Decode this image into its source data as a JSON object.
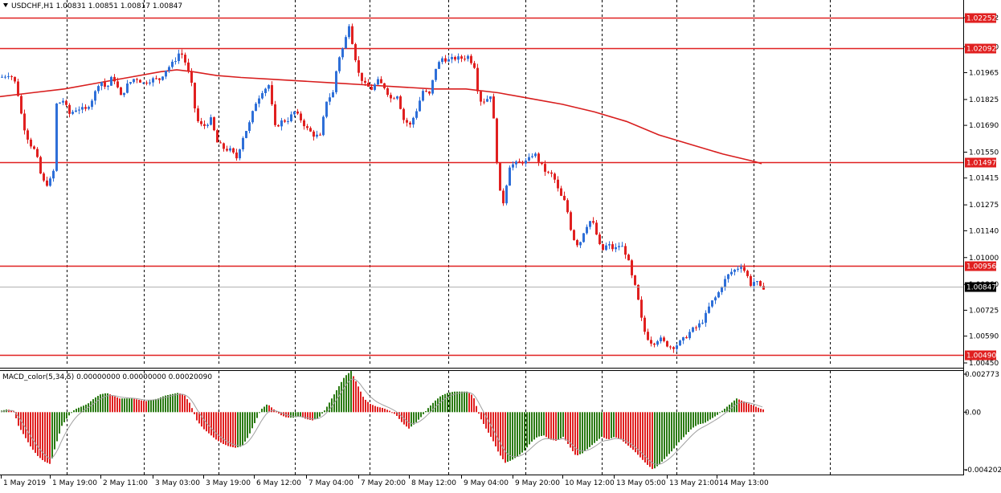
{
  "chart_data": {
    "type": "candlestick",
    "symbol_header": "USDCHF,H1  1.00831 1.00851 1.00817 1.00847",
    "ohlc_current": {
      "open": 1.00831,
      "high": 1.00851,
      "low": 1.00817,
      "close": 1.00847
    },
    "price_axis": {
      "range": [
        1.0045,
        1.02252
      ],
      "ticks": [
        "1.02252",
        "1.02100",
        "1.01965",
        "1.01825",
        "1.01690",
        "1.01550",
        "1.01415",
        "1.01275",
        "1.01140",
        "1.01000",
        "1.00860",
        "1.00725",
        "1.00590",
        "1.00450"
      ]
    },
    "time_labels": [
      "1 May 2019",
      "1 May 19:00",
      "2 May 11:00",
      "3 May 03:00",
      "3 May 19:00",
      "6 May 12:00",
      "7 May 04:00",
      "7 May 20:00",
      "8 May 12:00",
      "9 May 04:00",
      "9 May 20:00",
      "10 May 12:00",
      "13 May 05:00",
      "13 May 21:00",
      "14 May 13:00"
    ],
    "horizontal_levels": [
      {
        "label": "1.02252",
        "value": 1.02252
      },
      {
        "label": "1.02092",
        "value": 1.02092
      },
      {
        "label": "1.01497",
        "value": 1.01497
      },
      {
        "label": "1.00956",
        "value": 1.00956
      },
      {
        "label": "1.00490",
        "value": 1.0049
      }
    ],
    "current_price": {
      "label": "1.00847",
      "value": 1.00847
    },
    "bull_color": "#2e6fd8",
    "bear_color": "#e02020",
    "level_color": "#e02020",
    "ma_color": "#d81e1e",
    "moving_average": [
      [
        0,
        1.0184
      ],
      [
        40,
        1.0186
      ],
      [
        80,
        1.0188
      ],
      [
        120,
        1.0191
      ],
      [
        160,
        1.0194
      ],
      [
        200,
        1.0197
      ],
      [
        220,
        1.0198
      ],
      [
        240,
        1.0197
      ],
      [
        270,
        1.0195
      ],
      [
        300,
        1.0194
      ],
      [
        340,
        1.0193
      ],
      [
        380,
        1.0192
      ],
      [
        420,
        1.0191
      ],
      [
        460,
        1.019
      ],
      [
        500,
        1.0189
      ],
      [
        540,
        1.0188
      ],
      [
        580,
        1.0188
      ],
      [
        620,
        1.0186
      ],
      [
        660,
        1.0183
      ],
      [
        700,
        1.018
      ],
      [
        740,
        1.0176
      ],
      [
        780,
        1.0171
      ],
      [
        820,
        1.0164
      ],
      [
        860,
        1.0159
      ],
      [
        900,
        1.0154
      ],
      [
        940,
        1.015
      ],
      [
        948,
        1.0149
      ]
    ],
    "price_path": [
      [
        0,
        1.0194
      ],
      [
        12,
        1.0196
      ],
      [
        20,
        1.019
      ],
      [
        28,
        1.017
      ],
      [
        36,
        1.016
      ],
      [
        44,
        1.0155
      ],
      [
        52,
        1.014
      ],
      [
        60,
        1.0138
      ],
      [
        66,
        1.0145
      ],
      [
        70,
        1.018
      ],
      [
        78,
        1.0182
      ],
      [
        86,
        1.0175
      ],
      [
        96,
        1.0178
      ],
      [
        106,
        1.0177
      ],
      [
        116,
        1.0184
      ],
      [
        124,
        1.0193
      ],
      [
        132,
        1.0188
      ],
      [
        140,
        1.0195
      ],
      [
        150,
        1.0184
      ],
      [
        158,
        1.019
      ],
      [
        168,
        1.0194
      ],
      [
        178,
        1.0191
      ],
      [
        188,
        1.0193
      ],
      [
        198,
        1.0193
      ],
      [
        206,
        1.0198
      ],
      [
        216,
        1.0202
      ],
      [
        224,
        1.0208
      ],
      [
        232,
        1.02
      ],
      [
        238,
        1.019
      ],
      [
        244,
        1.0172
      ],
      [
        252,
        1.0168
      ],
      [
        262,
        1.0172
      ],
      [
        270,
        1.016
      ],
      [
        278,
        1.0157
      ],
      [
        286,
        1.0156
      ],
      [
        294,
        1.0152
      ],
      [
        302,
        1.0163
      ],
      [
        310,
        1.017
      ],
      [
        318,
        1.0181
      ],
      [
        326,
        1.0187
      ],
      [
        334,
        1.019
      ],
      [
        342,
        1.0168
      ],
      [
        350,
        1.0171
      ],
      [
        358,
        1.0172
      ],
      [
        366,
        1.0176
      ],
      [
        374,
        1.0172
      ],
      [
        382,
        1.0167
      ],
      [
        390,
        1.0164
      ],
      [
        398,
        1.0163
      ],
      [
        406,
        1.0182
      ],
      [
        414,
        1.0186
      ],
      [
        420,
        1.0203
      ],
      [
        428,
        1.0211
      ],
      [
        434,
        1.0222
      ],
      [
        440,
        1.0208
      ],
      [
        446,
        1.0196
      ],
      [
        454,
        1.019
      ],
      [
        462,
        1.0188
      ],
      [
        470,
        1.0192
      ],
      [
        478,
        1.0189
      ],
      [
        486,
        1.0183
      ],
      [
        494,
        1.0185
      ],
      [
        502,
        1.0172
      ],
      [
        510,
        1.0169
      ],
      [
        518,
        1.0177
      ],
      [
        526,
        1.0187
      ],
      [
        534,
        1.0185
      ],
      [
        542,
        1.0199
      ],
      [
        550,
        1.0204
      ],
      [
        558,
        1.0203
      ],
      [
        566,
        1.0204
      ],
      [
        574,
        1.0204
      ],
      [
        582,
        1.0205
      ],
      [
        590,
        1.02
      ],
      [
        596,
        1.0182
      ],
      [
        604,
        1.0182
      ],
      [
        610,
        1.0185
      ],
      [
        616,
        1.0165
      ],
      [
        620,
        1.0136
      ],
      [
        626,
        1.0129
      ],
      [
        634,
        1.0148
      ],
      [
        642,
        1.0149
      ],
      [
        650,
        1.015
      ],
      [
        656,
        1.015
      ],
      [
        664,
        1.0155
      ],
      [
        672,
        1.0149
      ],
      [
        680,
        1.0144
      ],
      [
        688,
        1.0143
      ],
      [
        696,
        1.0133
      ],
      [
        704,
        1.0128
      ],
      [
        712,
        1.0111
      ],
      [
        720,
        1.0106
      ],
      [
        728,
        1.0116
      ],
      [
        736,
        1.012
      ],
      [
        742,
        1.0112
      ],
      [
        748,
        1.0103
      ],
      [
        756,
        1.0107
      ],
      [
        764,
        1.0104
      ],
      [
        772,
        1.0107
      ],
      [
        780,
        1.0101
      ],
      [
        786,
        1.009
      ],
      [
        792,
        1.0082
      ],
      [
        800,
        1.0063
      ],
      [
        806,
        1.0058
      ],
      [
        812,
        1.0055
      ],
      [
        820,
        1.0058
      ],
      [
        828,
        1.0055
      ],
      [
        836,
        1.0053
      ],
      [
        844,
        1.0055
      ],
      [
        852,
        1.0058
      ],
      [
        860,
        1.0062
      ],
      [
        868,
        1.0064
      ],
      [
        876,
        1.0068
      ],
      [
        884,
        1.0076
      ],
      [
        892,
        1.008
      ],
      [
        900,
        1.0087
      ],
      [
        908,
        1.0092
      ],
      [
        916,
        1.0094
      ],
      [
        922,
        1.0096
      ],
      [
        928,
        1.0092
      ],
      [
        934,
        1.0086
      ],
      [
        940,
        1.0088
      ],
      [
        946,
        1.0084
      ],
      [
        952,
        1.00847
      ]
    ],
    "macd": {
      "label": "MACD_color(5,34,5) 0.00000000 0.00000000 0.00020090",
      "range": [
        -0.004202,
        0.002773
      ],
      "ticks": [
        "0.002773",
        "0.00",
        "-0.004202"
      ],
      "up_color": "#2a7a12",
      "down_color": "#e02020",
      "signal_color": "#a0a0a0",
      "bars": [
        [
          0,
          0.0001
        ],
        [
          8,
          0.0002
        ],
        [
          16,
          0.0001
        ],
        [
          22,
          -0.001
        ],
        [
          30,
          -0.0018
        ],
        [
          38,
          -0.0026
        ],
        [
          46,
          -0.0032
        ],
        [
          54,
          -0.0036
        ],
        [
          62,
          -0.0038
        ],
        [
          68,
          -0.0025
        ],
        [
          76,
          -0.001
        ],
        [
          84,
          -0.0003
        ],
        [
          92,
          0.0002
        ],
        [
          100,
          0.0004
        ],
        [
          108,
          0.0006
        ],
        [
          116,
          0.001
        ],
        [
          124,
          0.0013
        ],
        [
          132,
          0.0014
        ],
        [
          140,
          0.0012
        ],
        [
          148,
          0.001
        ],
        [
          156,
          0.001
        ],
        [
          164,
          0.001
        ],
        [
          172,
          0.0009
        ],
        [
          180,
          0.0008
        ],
        [
          188,
          0.0009
        ],
        [
          196,
          0.001
        ],
        [
          204,
          0.0012
        ],
        [
          212,
          0.0013
        ],
        [
          220,
          0.0014
        ],
        [
          228,
          0.0013
        ],
        [
          236,
          0.0006
        ],
        [
          244,
          -0.0006
        ],
        [
          252,
          -0.0012
        ],
        [
          260,
          -0.0016
        ],
        [
          268,
          -0.002
        ],
        [
          276,
          -0.0023
        ],
        [
          284,
          -0.0025
        ],
        [
          292,
          -0.0026
        ],
        [
          300,
          -0.0025
        ],
        [
          308,
          -0.0018
        ],
        [
          316,
          -0.0008
        ],
        [
          324,
          0.0002
        ],
        [
          332,
          0.0006
        ],
        [
          340,
          0.0002
        ],
        [
          348,
          -0.0002
        ],
        [
          356,
          -0.0004
        ],
        [
          364,
          -0.0004
        ],
        [
          372,
          -0.0003
        ],
        [
          380,
          -0.0005
        ],
        [
          388,
          -0.0006
        ],
        [
          396,
          -0.0004
        ],
        [
          404,
          0.0002
        ],
        [
          412,
          0.001
        ],
        [
          420,
          0.0018
        ],
        [
          428,
          0.0026
        ],
        [
          436,
          0.003
        ],
        [
          444,
          0.002
        ],
        [
          452,
          0.001
        ],
        [
          460,
          0.0006
        ],
        [
          468,
          0.0004
        ],
        [
          476,
          0.0003
        ],
        [
          484,
          0.0001
        ],
        [
          492,
          -0.0002
        ],
        [
          500,
          -0.0008
        ],
        [
          508,
          -0.0012
        ],
        [
          516,
          -0.0008
        ],
        [
          524,
          -0.0003
        ],
        [
          532,
          0.0003
        ],
        [
          540,
          0.0008
        ],
        [
          548,
          0.0012
        ],
        [
          556,
          0.0014
        ],
        [
          564,
          0.0015
        ],
        [
          572,
          0.0015
        ],
        [
          580,
          0.0015
        ],
        [
          588,
          0.0012
        ],
        [
          596,
          -0.0003
        ],
        [
          604,
          -0.0012
        ],
        [
          612,
          -0.002
        ],
        [
          620,
          -0.003
        ],
        [
          628,
          -0.0037
        ],
        [
          636,
          -0.0035
        ],
        [
          644,
          -0.0032
        ],
        [
          652,
          -0.0028
        ],
        [
          660,
          -0.0022
        ],
        [
          668,
          -0.0018
        ],
        [
          676,
          -0.0017
        ],
        [
          684,
          -0.002
        ],
        [
          692,
          -0.0021
        ],
        [
          700,
          -0.0018
        ],
        [
          708,
          -0.0025
        ],
        [
          716,
          -0.0032
        ],
        [
          724,
          -0.003
        ],
        [
          732,
          -0.0026
        ],
        [
          740,
          -0.0022
        ],
        [
          748,
          -0.0018
        ],
        [
          756,
          -0.002
        ],
        [
          764,
          -0.0018
        ],
        [
          772,
          -0.002
        ],
        [
          780,
          -0.0024
        ],
        [
          788,
          -0.0028
        ],
        [
          796,
          -0.0033
        ],
        [
          804,
          -0.0038
        ],
        [
          812,
          -0.0042
        ],
        [
          820,
          -0.0038
        ],
        [
          828,
          -0.0033
        ],
        [
          836,
          -0.0028
        ],
        [
          844,
          -0.0022
        ],
        [
          852,
          -0.0017
        ],
        [
          860,
          -0.0012
        ],
        [
          868,
          -0.0009
        ],
        [
          876,
          -0.0008
        ],
        [
          884,
          -0.0005
        ],
        [
          892,
          -0.0002
        ],
        [
          900,
          0.0002
        ],
        [
          908,
          0.0006
        ],
        [
          916,
          0.001
        ],
        [
          924,
          0.0008
        ],
        [
          932,
          0.0006
        ],
        [
          940,
          0.0004
        ],
        [
          948,
          0.0002
        ]
      ]
    }
  }
}
